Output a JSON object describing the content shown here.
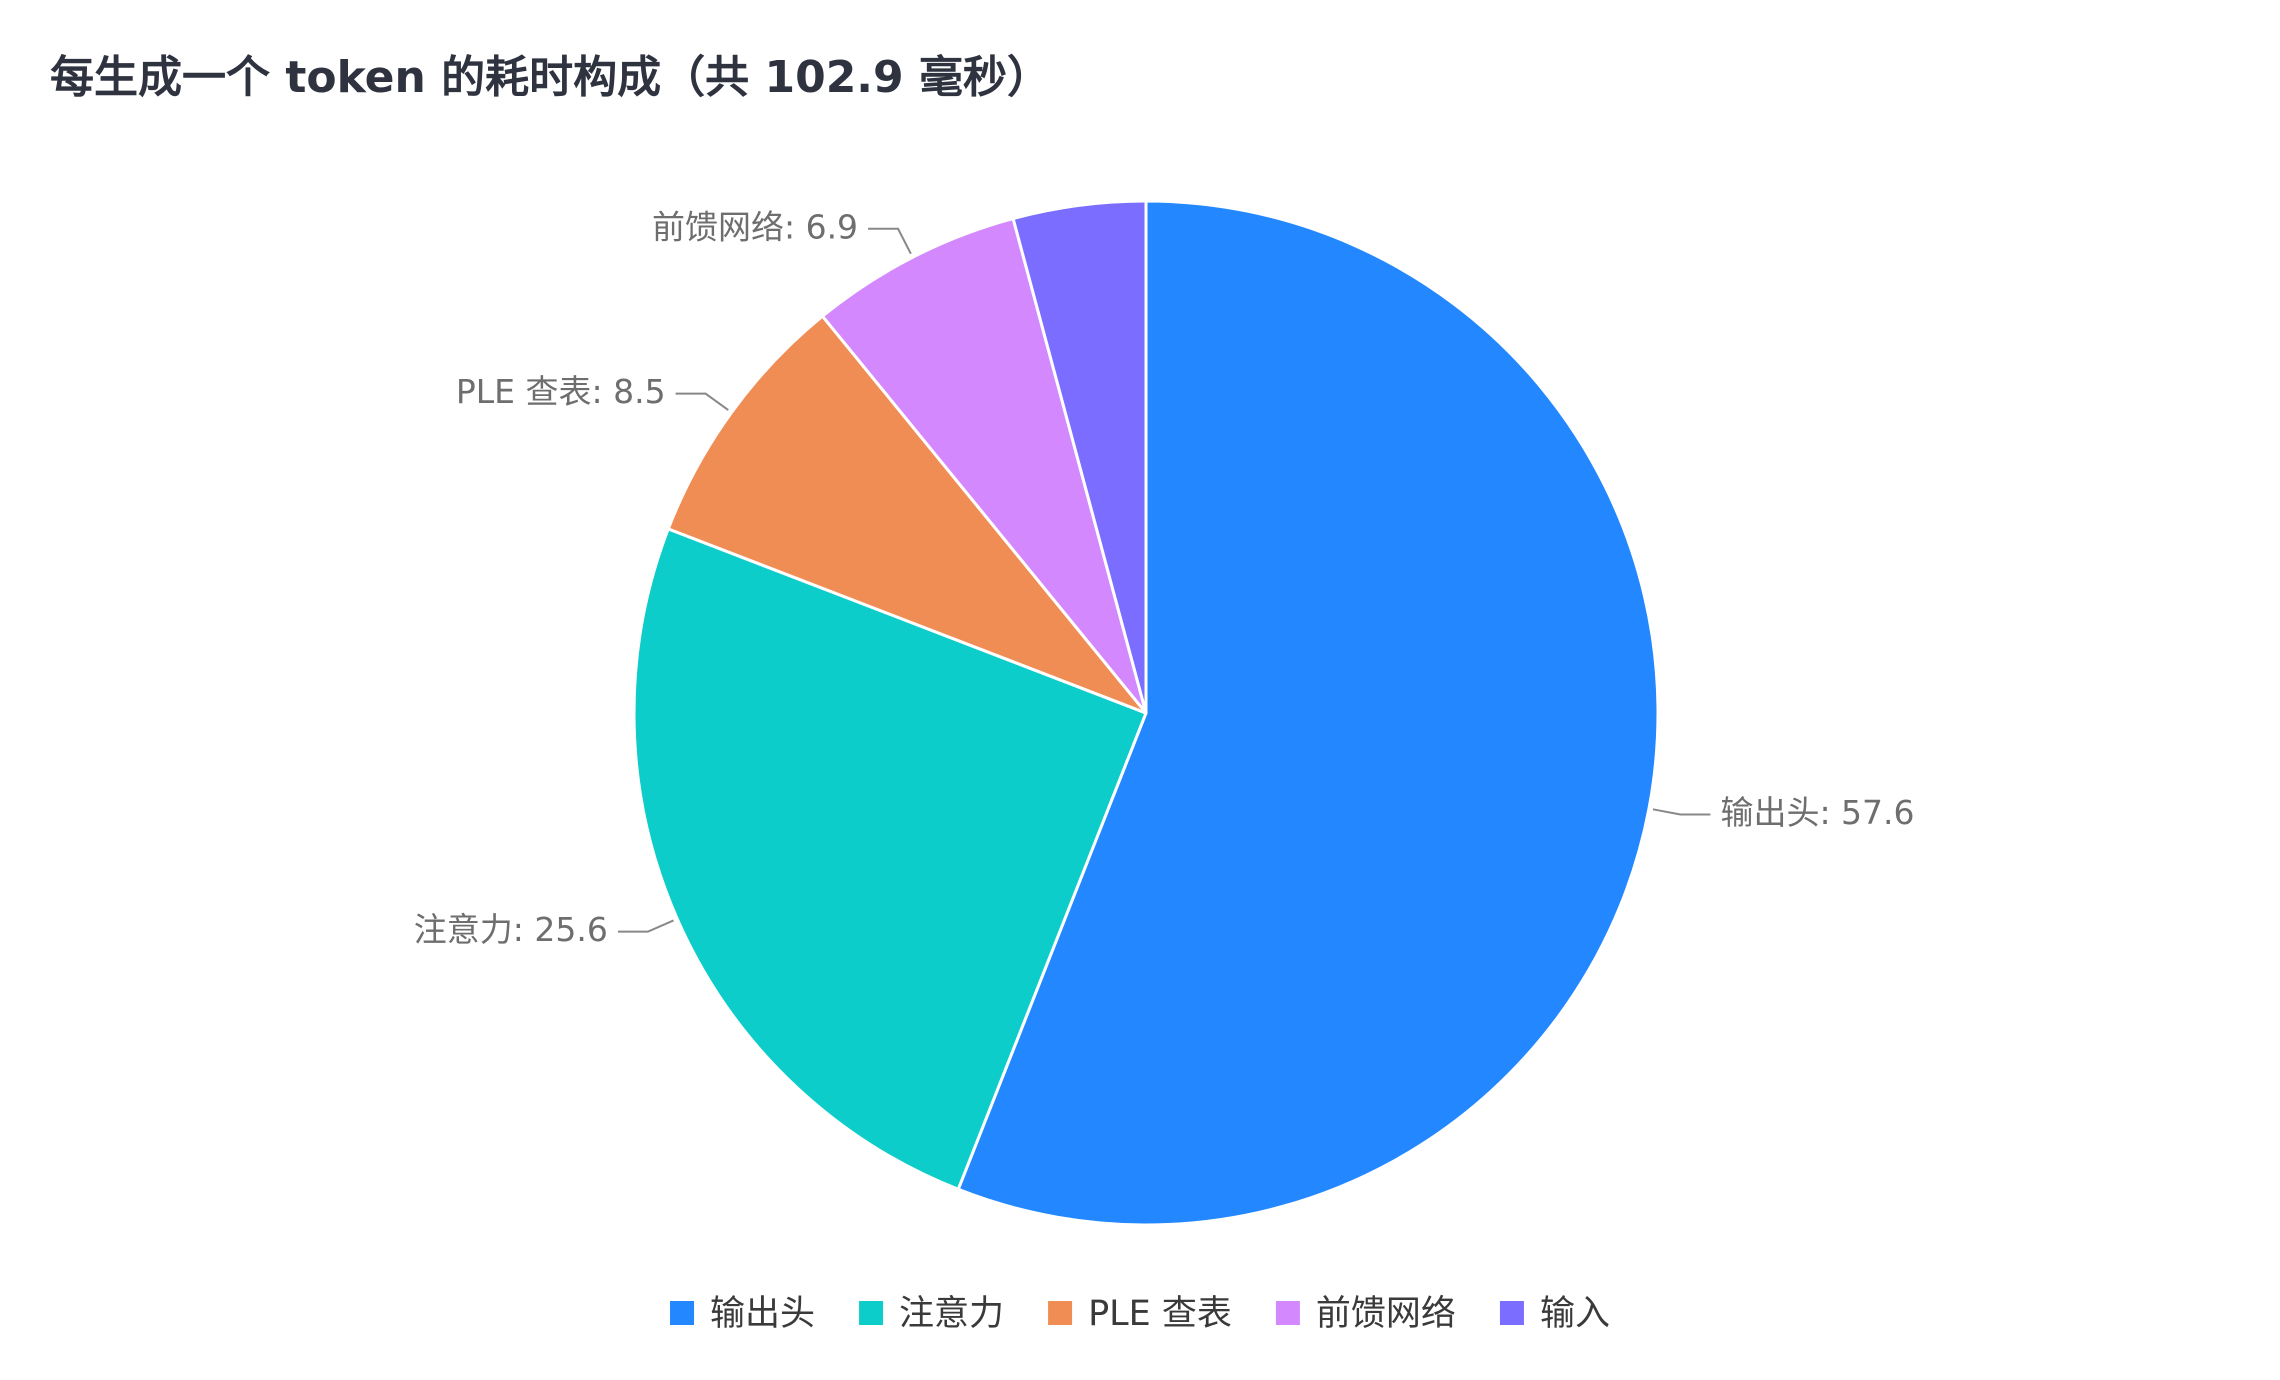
{
  "chart_data": {
    "type": "pie",
    "title": "每生成一个 token 的耗时构成（共 102.9 毫秒）",
    "categories": [
      "输出头",
      "注意力",
      "PLE 查表",
      "前馈网络",
      "输入"
    ],
    "values": [
      57.6,
      25.6,
      8.5,
      6.9,
      4.3
    ],
    "value_labels": [
      "输出头: 57.6",
      "注意力: 25.6",
      "PLE 查表: 8.5",
      "前馈网络: 6.9",
      null
    ],
    "colors": [
      "#2388ff",
      "#0dcdca",
      "#ef8d55",
      "#d488fe",
      "#7b6dff"
    ],
    "legend": "bottom"
  }
}
